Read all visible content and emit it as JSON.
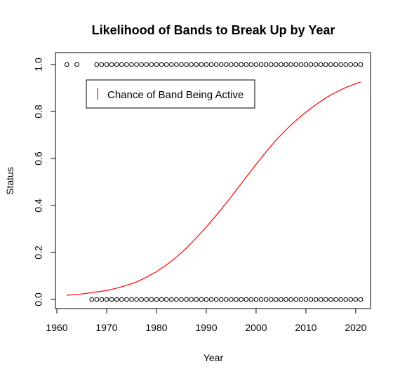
{
  "chart_data": {
    "type": "scatter",
    "title": "Likelihood of Bands to Break Up by Year",
    "xlabel": "Year",
    "ylabel": "Status",
    "xlim": [
      1960,
      2021
    ],
    "ylim": [
      0,
      1
    ],
    "xticks": [
      1960,
      1970,
      1980,
      1990,
      2000,
      2010,
      2020
    ],
    "yticks": [
      0.0,
      0.2,
      0.4,
      0.6,
      0.8,
      1.0
    ],
    "ytick_labels": [
      "0.0",
      "0.2",
      "0.4",
      "0.6",
      "0.8",
      "1.0"
    ],
    "legend": {
      "position": "top-left",
      "entries": [
        {
          "label": "Chance of Band Being Active",
          "color": "#ff0000"
        }
      ]
    },
    "series": [
      {
        "name": "Status = 1",
        "kind": "points",
        "color": "#000000",
        "x": [
          1962,
          1964,
          1968,
          1969,
          1970,
          1971,
          1972,
          1973,
          1974,
          1975,
          1976,
          1977,
          1978,
          1979,
          1980,
          1981,
          1982,
          1983,
          1984,
          1985,
          1986,
          1987,
          1988,
          1989,
          1990,
          1991,
          1992,
          1993,
          1994,
          1995,
          1996,
          1997,
          1998,
          1999,
          2000,
          2001,
          2002,
          2003,
          2004,
          2005,
          2006,
          2007,
          2008,
          2009,
          2010,
          2011,
          2012,
          2013,
          2014,
          2015,
          2016,
          2017,
          2018,
          2019,
          2020,
          2021
        ],
        "y": 1
      },
      {
        "name": "Status = 0",
        "kind": "points",
        "color": "#000000",
        "x": [
          1967,
          1968,
          1969,
          1970,
          1971,
          1972,
          1973,
          1974,
          1975,
          1976,
          1977,
          1978,
          1979,
          1980,
          1981,
          1982,
          1983,
          1984,
          1985,
          1986,
          1987,
          1988,
          1989,
          1990,
          1991,
          1992,
          1993,
          1994,
          1995,
          1996,
          1997,
          1998,
          1999,
          2000,
          2001,
          2002,
          2003,
          2004,
          2005,
          2006,
          2007,
          2008,
          2009,
          2010,
          2011,
          2012,
          2013,
          2014,
          2015,
          2016,
          2017,
          2018,
          2019,
          2020,
          2021
        ],
        "y": 0
      },
      {
        "name": "Chance of Band Being Active",
        "kind": "line",
        "color": "#ff0000",
        "x": [
          1962,
          1964,
          1966,
          1968,
          1970,
          1972,
          1974,
          1976,
          1978,
          1980,
          1982,
          1984,
          1986,
          1988,
          1990,
          1992,
          1994,
          1996,
          1998,
          2000,
          2002,
          2004,
          2006,
          2008,
          2010,
          2012,
          2014,
          2016,
          2018,
          2020,
          2021
        ],
        "y": [
          0.018,
          0.021,
          0.026,
          0.032,
          0.038,
          0.048,
          0.06,
          0.074,
          0.095,
          0.118,
          0.147,
          0.18,
          0.218,
          0.262,
          0.308,
          0.358,
          0.41,
          0.465,
          0.52,
          0.575,
          0.628,
          0.678,
          0.722,
          0.762,
          0.797,
          0.829,
          0.858,
          0.882,
          0.902,
          0.918,
          0.926
        ]
      }
    ]
  }
}
